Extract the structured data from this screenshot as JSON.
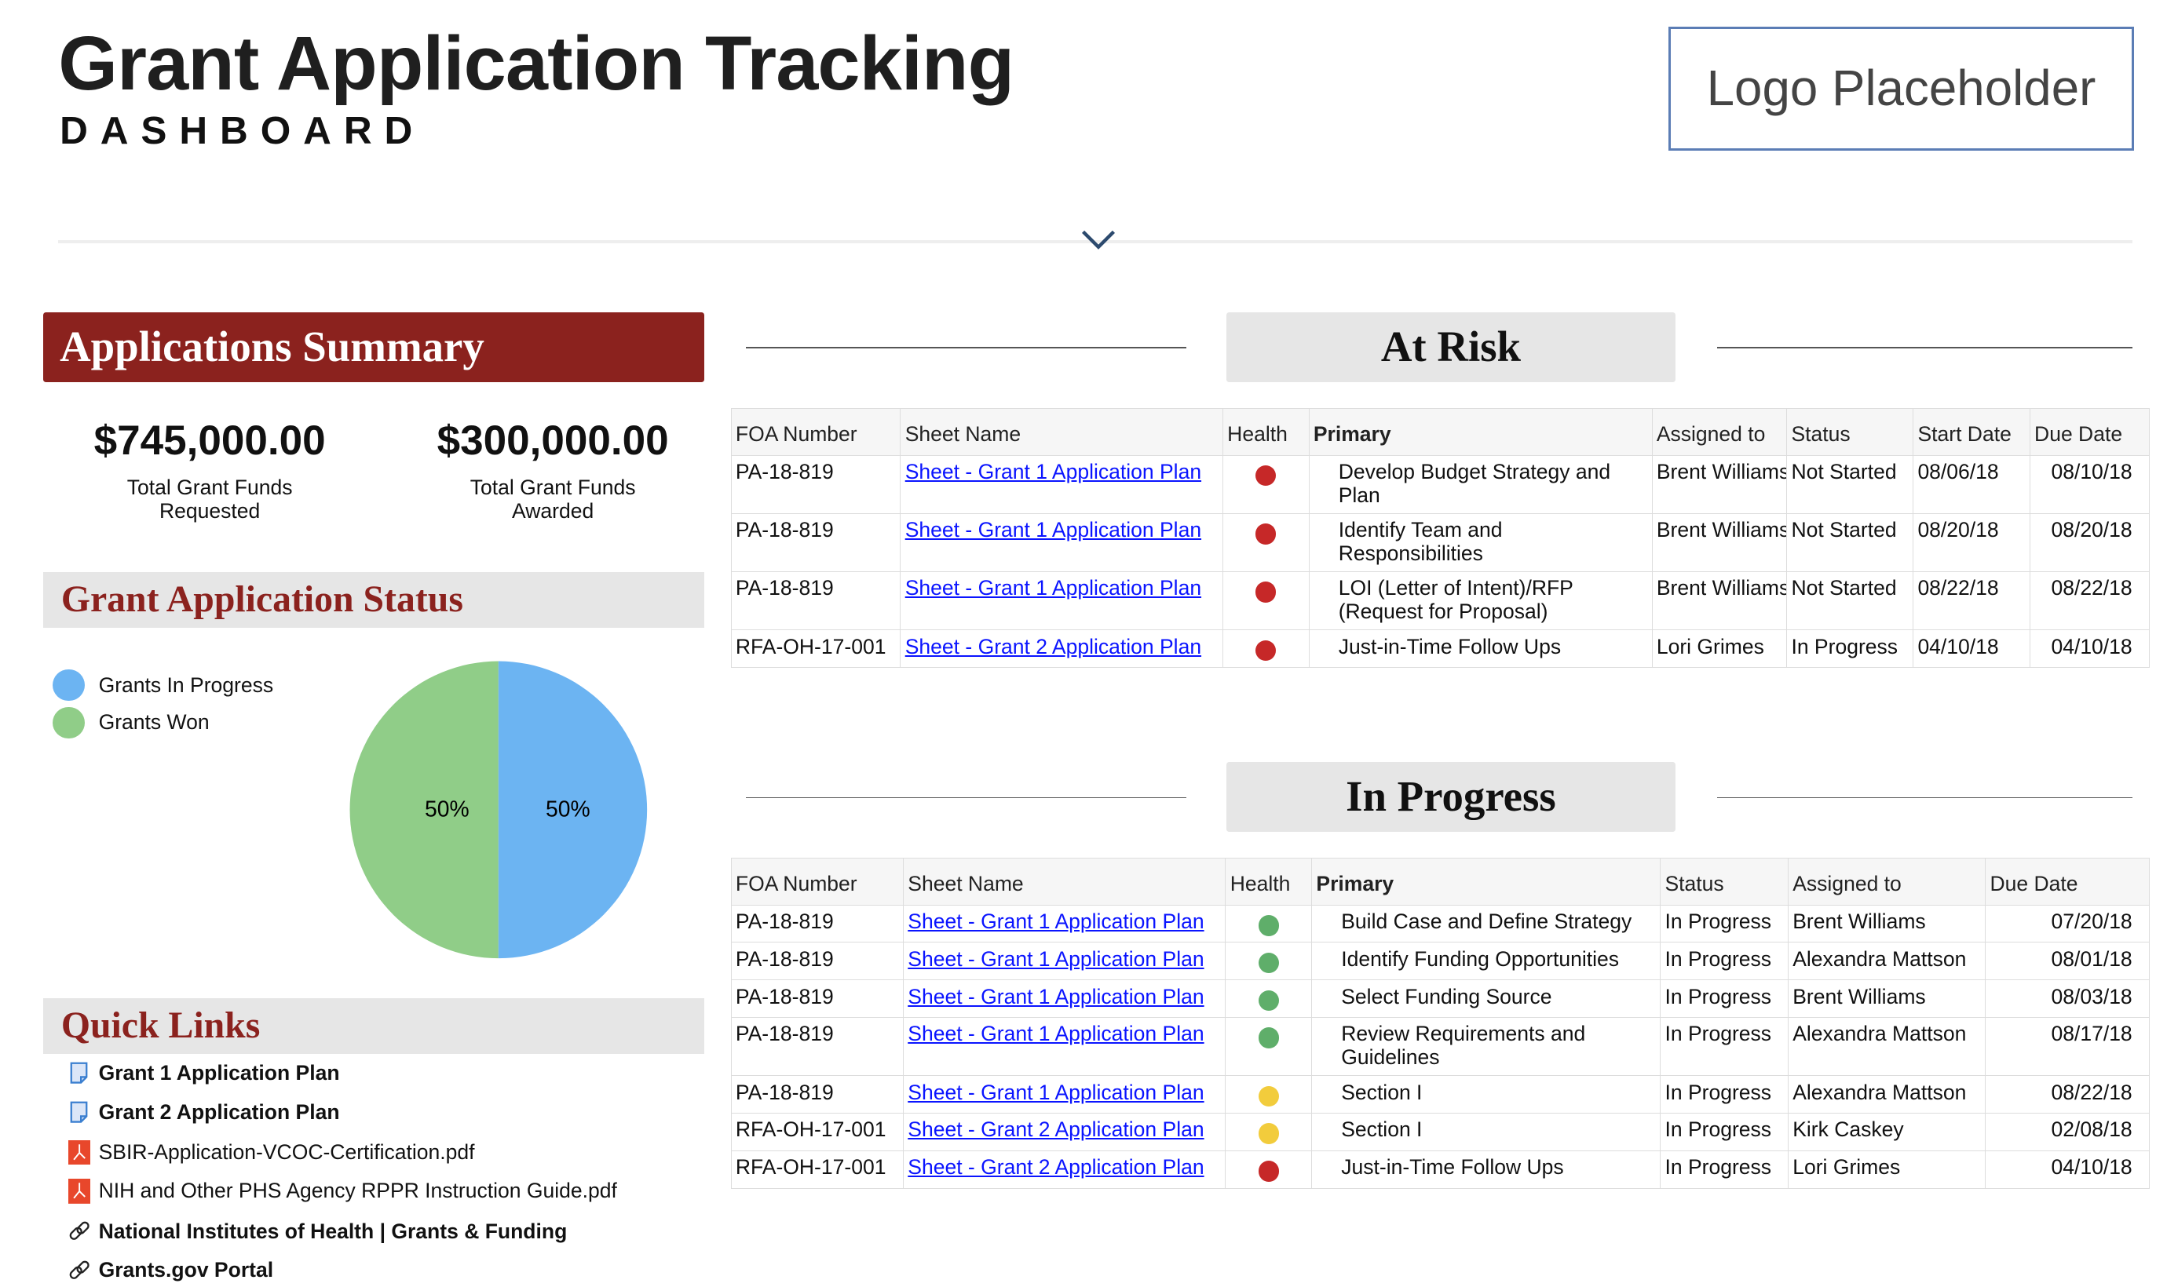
{
  "header": {
    "title": "Grant Application Tracking",
    "subtitle": "DASHBOARD",
    "logo": "Logo Placeholder"
  },
  "summary": {
    "title": "Applications Summary",
    "requested_value": "$745,000.00",
    "requested_label": "Total Grant Funds Requested",
    "awarded_value": "$300,000.00",
    "awarded_label": "Total Grant Funds Awarded"
  },
  "status": {
    "title": "Grant Application Status",
    "legend": [
      {
        "label": "Grants In Progress",
        "color": "#6cb4f2"
      },
      {
        "label": "Grants Won",
        "color": "#90cd88"
      }
    ],
    "pie": {
      "in_progress_pct": 50,
      "won_pct": 50,
      "in_progress_label": "50%",
      "won_label": "50%"
    }
  },
  "quick_links": {
    "title": "Quick Links",
    "items": [
      {
        "label": "Grant 1 Application Plan",
        "icon": "sheet-icon"
      },
      {
        "label": "Grant 2 Application Plan",
        "icon": "sheet-icon"
      },
      {
        "label": "SBIR-Application-VCOC-Certification.pdf",
        "icon": "pdf-icon"
      },
      {
        "label": "NIH and Other PHS Agency RPPR Instruction Guide.pdf",
        "icon": "pdf-icon"
      },
      {
        "label": "National Institutes of Health | Grants & Funding",
        "icon": "link-icon"
      },
      {
        "label": "Grants.gov Portal",
        "icon": "link-icon"
      }
    ]
  },
  "health_colors": {
    "red": "#c62828",
    "green": "#5fae6a",
    "yellow": "#f2cc3c"
  },
  "at_risk": {
    "title": "At Risk",
    "columns": [
      "FOA Number",
      "Sheet Name",
      "Health",
      "Primary",
      "Assigned to",
      "Status",
      "Start Date",
      "Due Date"
    ],
    "rows": [
      {
        "foa": "PA-18-819",
        "sheet": "Sheet - Grant 1 Application Plan",
        "health": "red",
        "primary": "Develop Budget Strategy and Plan",
        "assigned": "Brent Williams",
        "status": "Not Started",
        "start": "08/06/18",
        "due": "08/10/18"
      },
      {
        "foa": "PA-18-819",
        "sheet": "Sheet - Grant 1 Application Plan",
        "health": "red",
        "primary": "Identify Team and Responsibilities",
        "assigned": "Brent Williams",
        "status": "Not Started",
        "start": "08/20/18",
        "due": "08/20/18"
      },
      {
        "foa": "PA-18-819",
        "sheet": "Sheet - Grant 1 Application Plan",
        "health": "red",
        "primary": "LOI (Letter of Intent)/RFP (Request for Proposal)",
        "assigned": "Brent Williams",
        "status": "Not Started",
        "start": "08/22/18",
        "due": "08/22/18"
      },
      {
        "foa": "RFA-OH-17-001",
        "sheet": "Sheet - Grant 2 Application Plan",
        "health": "red",
        "primary": "Just-in-Time Follow Ups",
        "assigned": "Lori Grimes",
        "status": "In Progress",
        "start": "04/10/18",
        "due": "04/10/18"
      }
    ]
  },
  "in_progress": {
    "title": "In Progress",
    "columns": [
      "FOA Number",
      "Sheet Name",
      "Health",
      "Primary",
      "Status",
      "Assigned to",
      "Due Date"
    ],
    "rows": [
      {
        "foa": "PA-18-819",
        "sheet": "Sheet - Grant 1 Application Plan",
        "health": "green",
        "primary": "Build Case and Define Strategy",
        "status": "In Progress",
        "assigned": "Brent Williams",
        "due": "07/20/18"
      },
      {
        "foa": "PA-18-819",
        "sheet": "Sheet - Grant 1 Application Plan",
        "health": "green",
        "primary": "Identify Funding Opportunities",
        "status": "In Progress",
        "assigned": "Alexandra Mattson",
        "due": "08/01/18"
      },
      {
        "foa": "PA-18-819",
        "sheet": "Sheet - Grant 1 Application Plan",
        "health": "green",
        "primary": "Select Funding Source",
        "status": "In Progress",
        "assigned": "Brent Williams",
        "due": "08/03/18"
      },
      {
        "foa": "PA-18-819",
        "sheet": "Sheet - Grant 1 Application Plan",
        "health": "green",
        "primary": "Review Requirements and Guidelines",
        "status": "In Progress",
        "assigned": "Alexandra Mattson",
        "due": "08/17/18"
      },
      {
        "foa": "PA-18-819",
        "sheet": "Sheet - Grant 1 Application Plan",
        "health": "yellow",
        "primary": "Section I",
        "status": "In Progress",
        "assigned": "Alexandra Mattson",
        "due": "08/22/18"
      },
      {
        "foa": "RFA-OH-17-001",
        "sheet": "Sheet - Grant 2 Application Plan",
        "health": "yellow",
        "primary": "Section I",
        "status": "In Progress",
        "assigned": "Kirk Caskey",
        "due": "02/08/18"
      },
      {
        "foa": "RFA-OH-17-001",
        "sheet": "Sheet - Grant 2 Application Plan",
        "health": "red",
        "primary": "Just-in-Time Follow Ups",
        "status": "In Progress",
        "assigned": "Lori Grimes",
        "due": "04/10/18"
      }
    ]
  }
}
